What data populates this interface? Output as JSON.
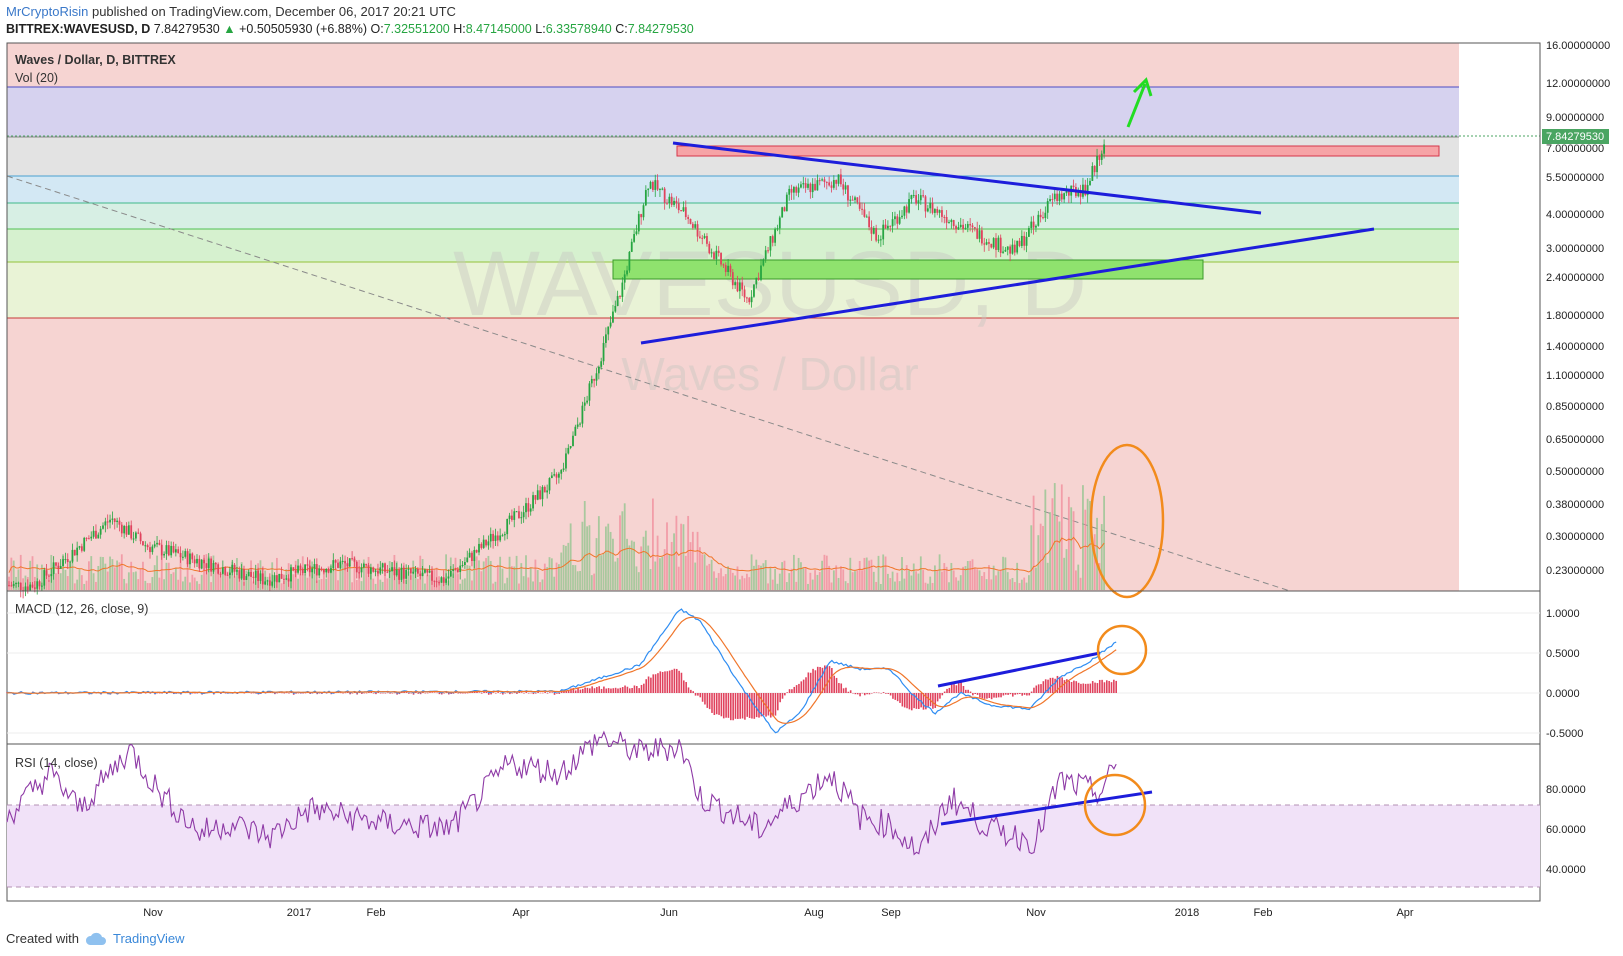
{
  "header": {
    "author": "MrCryptoRisin",
    "published": "published on TradingView.com, December 06, 2017 20:21 UTC",
    "symbol": "BITTREX:WAVESUSD, D",
    "last": "7.84279530",
    "change": "+0.50505930 (+6.88%)",
    "open_label": "O:",
    "open": "7.32551200",
    "high_label": "H:",
    "high": "8.47145000",
    "low_label": "L:",
    "low": "6.33578940",
    "close_label": "C:",
    "close": "7.84279530"
  },
  "legend": {
    "title": "Waves / Dollar, D, BITTREX",
    "volume": "Vol (20)",
    "macd": "MACD (12, 26, close, 9)",
    "rsi": "RSI (14, close)"
  },
  "watermark": {
    "symbol": "WAVESUSD, D",
    "name": "Waves / Dollar"
  },
  "price_axis": {
    "ticks": [
      "16.00000000",
      "12.00000000",
      "9.00000000",
      "7.00000000",
      "5.50000000",
      "4.00000000",
      "3.00000000",
      "2.40000000",
      "1.80000000",
      "1.40000000",
      "1.10000000",
      "0.85000000",
      "0.65000000",
      "0.50000000",
      "0.38000000",
      "0.30000000",
      "0.23000000"
    ],
    "last_badge": "7.84279530"
  },
  "macd_axis": {
    "ticks": [
      "1.0000",
      "0.5000",
      "0.0000",
      "-0.5000"
    ]
  },
  "rsi_axis": {
    "ticks": [
      "80.0000",
      "60.0000",
      "40.0000"
    ]
  },
  "time_axis": {
    "labels": [
      "Nov",
      "2017",
      "Feb",
      "Apr",
      "Jun",
      "Aug",
      "Sep",
      "Nov",
      "2018",
      "Feb",
      "Apr"
    ]
  },
  "footer": {
    "created_with": "Created with",
    "brand": "TradingView"
  },
  "colors": {
    "up": "#26a541",
    "down": "#e0425d",
    "trendline": "#1d1ddb",
    "annotation": "#f28b1c",
    "macd_line": "#2f8df2",
    "signal_line": "#f0762b",
    "rsi_line": "#8e3aa6",
    "badge": "#4aa562"
  },
  "chart_data": {
    "type": "candlestick",
    "scale": "log",
    "x_range": [
      "2016-09-20",
      "2018-05-10"
    ],
    "price_range": [
      0.2,
      17
    ],
    "series": [
      {
        "name": "WAVESUSD",
        "approx_close": [
          {
            "x": "2016-10-01",
            "y": 0.21
          },
          {
            "x": "2016-11-01",
            "y": 0.36
          },
          {
            "x": "2016-11-15",
            "y": 0.29
          },
          {
            "x": "2017-01-01",
            "y": 0.22
          },
          {
            "x": "2017-02-01",
            "y": 0.25
          },
          {
            "x": "2017-03-15",
            "y": 0.22
          },
          {
            "x": "2017-04-15",
            "y": 0.38
          },
          {
            "x": "2017-05-01",
            "y": 0.52
          },
          {
            "x": "2017-05-15",
            "y": 1.2
          },
          {
            "x": "2017-05-25",
            "y": 2.3
          },
          {
            "x": "2017-06-05",
            "y": 5.5
          },
          {
            "x": "2017-06-20",
            "y": 4.2
          },
          {
            "x": "2017-07-15",
            "y": 2.1
          },
          {
            "x": "2017-08-01",
            "y": 5.0
          },
          {
            "x": "2017-08-20",
            "y": 5.6
          },
          {
            "x": "2017-09-05",
            "y": 3.5
          },
          {
            "x": "2017-09-20",
            "y": 4.8
          },
          {
            "x": "2017-10-10",
            "y": 3.8
          },
          {
            "x": "2017-10-30",
            "y": 3.1
          },
          {
            "x": "2017-11-15",
            "y": 4.8
          },
          {
            "x": "2017-11-28",
            "y": 5.2
          },
          {
            "x": "2017-12-06",
            "y": 7.84
          }
        ]
      }
    ],
    "fib_levels": [
      16.0,
      11.7,
      7.7,
      5.6,
      4.45,
      3.55,
      2.65,
      1.75
    ],
    "zones": [
      {
        "name": "resistance",
        "from": "2017-06-01",
        "to": "2018-01-15",
        "low": 6.7,
        "high": 7.3
      },
      {
        "name": "support",
        "from": "2017-05-20",
        "to": "2017-11-30",
        "low": 2.25,
        "high": 2.75
      }
    ],
    "macd": {
      "ylim": [
        -0.55,
        1.25
      ]
    },
    "rsi": {
      "ylim": [
        20,
        100
      ],
      "bands": [
        30,
        70
      ]
    }
  }
}
